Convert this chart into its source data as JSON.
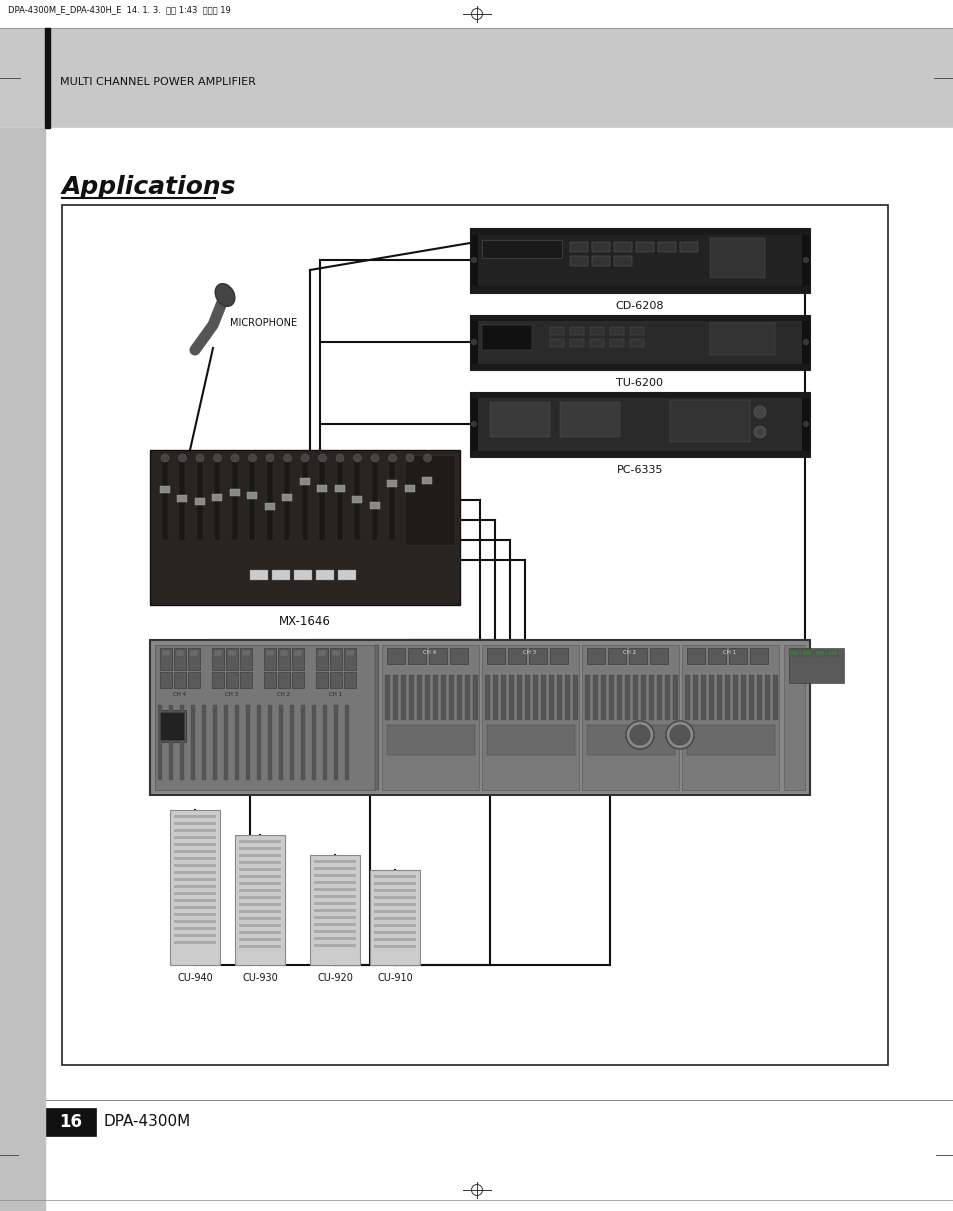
{
  "page_bg": "#ffffff",
  "header_bg": "#c8c8c8",
  "header_text": "MULTI CHANNEL POWER AMPLIFIER",
  "header_text_color": "#111111",
  "top_label": "DPA-4300M_E_DPA-430H_E  14. 1. 3.  오후 1:43  페이지 19",
  "title": "Applications",
  "title_color": "#111111",
  "footer_page_num": "16",
  "footer_model": "DPA-4300M",
  "left_bar_color": "#c0c0c0",
  "diagram_border_color": "#222222",
  "diagram_bg": "#ffffff",
  "cd6208_label": "CD-6208",
  "tu6200_label": "TU-6200",
  "pc6335_label": "PC-6335",
  "mx1646_label": "MX-1646",
  "microphone_label": "MICROPHONE",
  "speakers": [
    "CU-940",
    "CU-930",
    "CU-920",
    "CU-910"
  ],
  "rack_color": "#1a1a1a",
  "rack_face": "#2a2a2a",
  "rack_mid": "#383838",
  "amp_color": "#888888",
  "amp_face": "#999999",
  "wire_color": "#111111",
  "speaker_color": "#bbbbbb"
}
